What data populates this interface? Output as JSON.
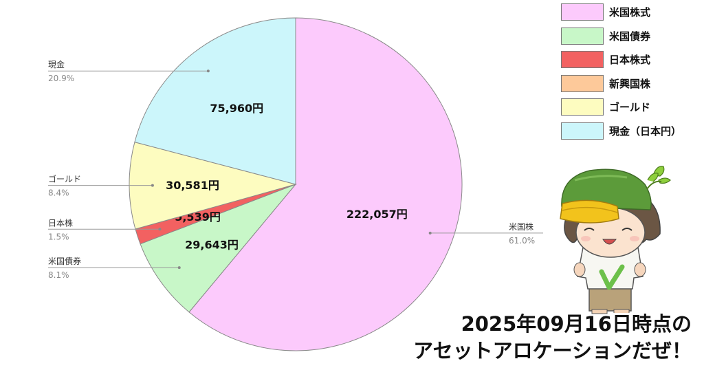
{
  "chart_data": {
    "type": "pie",
    "start_angle_deg": -90,
    "direction": "clockwise",
    "slices": [
      {
        "name": "米国株",
        "amount": "222,057円",
        "percent": "61.0%",
        "value": 61.0,
        "color": "#fccafc"
      },
      {
        "name": "米国債券",
        "amount": "29,643円",
        "percent": "8.1%",
        "value": 8.1,
        "color": "#c8f7c8"
      },
      {
        "name": "日本株",
        "amount": "5,539円",
        "percent": "1.5%",
        "value": 1.5,
        "color": "#f26161"
      },
      {
        "name": "ゴールド",
        "amount": "30,581円",
        "percent": "8.4%",
        "value": 8.4,
        "color": "#fdfcc0"
      },
      {
        "name": "現金",
        "amount": "75,960円",
        "percent": "20.9%",
        "value": 20.9,
        "color": "#ccf6fb"
      }
    ],
    "legend": {
      "position": "top-right",
      "items": [
        {
          "label": "米国株式",
          "color": "#fccafc"
        },
        {
          "label": "米国債券",
          "color": "#c8f7c8"
        },
        {
          "label": "日本株式",
          "color": "#f26161"
        },
        {
          "label": "新興国株",
          "color": "#fdc99a"
        },
        {
          "label": "ゴールド",
          "color": "#fdfcc0"
        },
        {
          "label": "現金（日本円）",
          "color": "#ccf6fb"
        }
      ]
    }
  },
  "caption": {
    "line1": "2025年09月16日時点の",
    "line2": "アセットアロケーションだぜ！"
  },
  "mascot": {
    "icon": "kappa-boy-mascot"
  }
}
